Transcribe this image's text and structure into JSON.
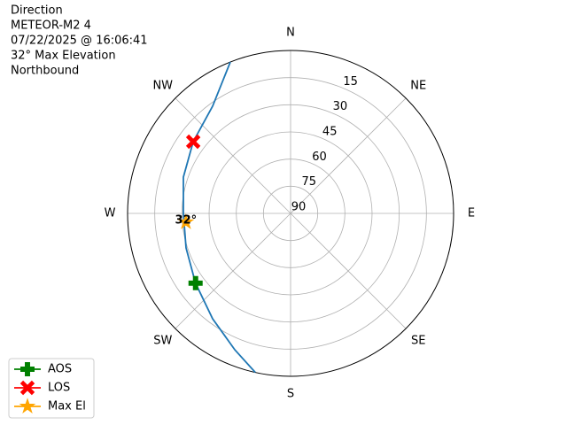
{
  "chart_data": {
    "type": "polar",
    "title_lines": [
      "Direction",
      "METEOR-M2 4",
      "07/22/2025 @ 16:06:41",
      "32° Max Elevation",
      "Northbound"
    ],
    "theta_zero": "N",
    "theta_direction": "clockwise",
    "rlim": [
      90,
      0
    ],
    "rticks": [
      90,
      75,
      60,
      45,
      30,
      15
    ],
    "thetaticks": [
      {
        "value": 0,
        "label": "N"
      },
      {
        "value": 45,
        "label": "NE"
      },
      {
        "value": 90,
        "label": "E"
      },
      {
        "value": 135,
        "label": "SE"
      },
      {
        "value": 180,
        "label": "S"
      },
      {
        "value": 225,
        "label": "SW"
      },
      {
        "value": 270,
        "label": "W"
      },
      {
        "value": 315,
        "label": "NW"
      }
    ],
    "grid": true,
    "track": {
      "color": "#1f77b4",
      "theta": [
        338.3,
        324,
        306.4,
        288.7,
        270,
        251.7,
        233.7,
        216.5,
        202.2,
        192.5
      ],
      "r": [
        0,
        16.8,
        23.2,
        27.5,
        30.8,
        29.2,
        24.9,
        17.6,
        8.6,
        0
      ]
    },
    "series": [
      {
        "name": "AOS",
        "color": "#008000",
        "marker": "plus",
        "theta": [
          233.7
        ],
        "r": [
          24.9
        ]
      },
      {
        "name": "LOS",
        "color": "#ff0000",
        "marker": "x",
        "theta": [
          306.4
        ],
        "r": [
          23.2
        ]
      },
      {
        "name": "Max El",
        "color": "#ffa500",
        "marker": "star",
        "theta": [
          265.2
        ],
        "r": [
          32
        ]
      }
    ],
    "annotation": "32°",
    "legend": "lower left"
  }
}
